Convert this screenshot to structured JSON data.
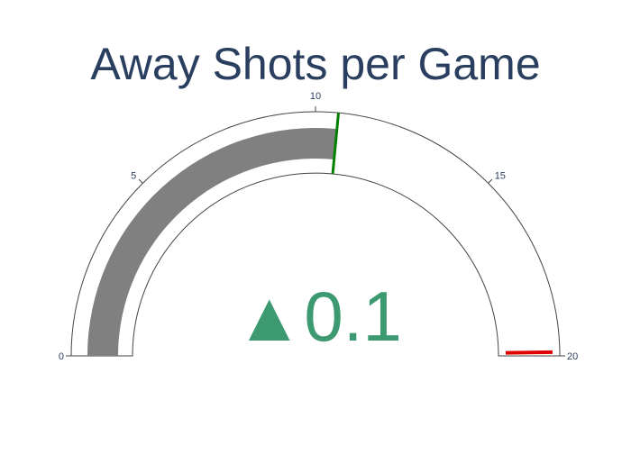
{
  "chart_data": {
    "type": "gauge",
    "title": "Away Shots per Game",
    "value": 10.6,
    "delta": {
      "value": 0.1,
      "direction": "increasing",
      "display": "▲0.1",
      "color": "#3d9970"
    },
    "axis": {
      "range": [
        0,
        20
      ],
      "ticks": [
        0,
        5,
        10,
        15,
        20
      ],
      "tick_labels": [
        "0",
        "5",
        "10",
        "15",
        "20"
      ]
    },
    "bar": {
      "value": 10.6,
      "color": "#808080"
    },
    "reference_line": {
      "value": 10.6,
      "color": "#008000"
    },
    "threshold": {
      "value": 19.9,
      "color": "#e00000"
    },
    "title_color": "#2a3f5f",
    "tick_color": "#2a3f5f",
    "outline_color": "#444444"
  }
}
